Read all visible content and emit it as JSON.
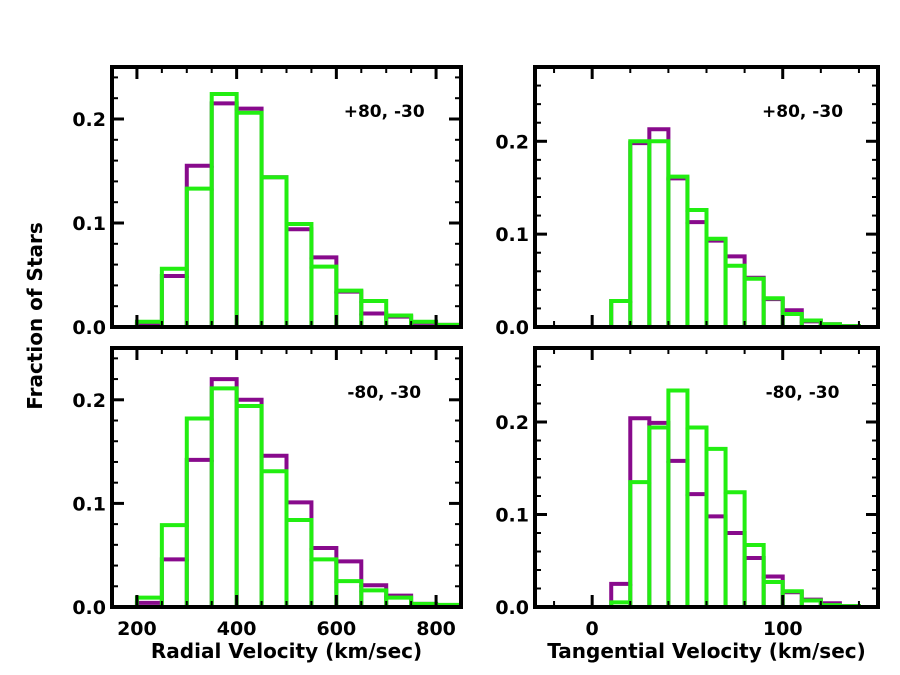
{
  "colors": {
    "series_a": "#880a8c",
    "series_b": "#22ee11",
    "frame": "#000000"
  },
  "shared_labels": {
    "ylabel": "Fraction of Stars"
  },
  "chart_data": [
    {
      "id": "radial_top",
      "type": "histogram",
      "annotation": "+80, -30",
      "xlim": [
        150,
        850
      ],
      "ylim": [
        0,
        0.25
      ],
      "xticks": [
        200,
        400,
        600,
        800
      ],
      "yticks": [
        0.0,
        0.1,
        0.2
      ],
      "ytick_labels": [
        "0.0",
        "0.1",
        "0.2"
      ],
      "bin_edges": [
        150,
        200,
        250,
        300,
        350,
        400,
        450,
        500,
        550,
        600,
        650,
        700,
        750,
        800,
        850
      ],
      "series": [
        {
          "name": "purple",
          "values": [
            0.0,
            0.003,
            0.049,
            0.155,
            0.215,
            0.21,
            0.144,
            0.094,
            0.067,
            0.034,
            0.013,
            0.01,
            0.004,
            0.002
          ]
        },
        {
          "name": "green",
          "values": [
            0.0,
            0.005,
            0.056,
            0.133,
            0.224,
            0.206,
            0.144,
            0.099,
            0.058,
            0.035,
            0.025,
            0.011,
            0.005,
            0.002
          ]
        }
      ]
    },
    {
      "id": "tangential_top",
      "type": "histogram",
      "annotation": "+80, -30",
      "xlim": [
        -30,
        150
      ],
      "ylim": [
        0,
        0.28
      ],
      "xticks": [
        0,
        100
      ],
      "yticks": [
        0.0,
        0.1,
        0.2
      ],
      "ytick_labels": [
        "0.0",
        "0.1",
        "0.2"
      ],
      "bin_edges": [
        10,
        20,
        30,
        40,
        50,
        60,
        70,
        80,
        90,
        100,
        110,
        120,
        130,
        140
      ],
      "series": [
        {
          "name": "purple",
          "values": [
            0.028,
            0.198,
            0.213,
            0.16,
            0.113,
            0.093,
            0.076,
            0.053,
            0.03,
            0.018,
            0.006,
            0.003,
            0.001
          ]
        },
        {
          "name": "green",
          "values": [
            0.028,
            0.2,
            0.2,
            0.162,
            0.126,
            0.095,
            0.066,
            0.052,
            0.031,
            0.014,
            0.007,
            0.003,
            0.001
          ]
        }
      ]
    },
    {
      "id": "radial_bottom",
      "type": "histogram",
      "annotation": "-80, -30",
      "xlim": [
        150,
        850
      ],
      "ylim": [
        0,
        0.25
      ],
      "xticks": [
        200,
        400,
        600,
        800
      ],
      "xtick_labels": [
        "200",
        "400",
        "600",
        "800"
      ],
      "yticks": [
        0.0,
        0.1,
        0.2
      ],
      "ytick_labels": [
        "0.0",
        "0.1",
        "0.2"
      ],
      "xlabel": "Radial Velocity (km/sec)",
      "bin_edges": [
        150,
        200,
        250,
        300,
        350,
        400,
        450,
        500,
        550,
        600,
        650,
        700,
        750,
        800,
        850
      ],
      "series": [
        {
          "name": "purple",
          "values": [
            0.0,
            0.004,
            0.046,
            0.142,
            0.22,
            0.2,
            0.146,
            0.101,
            0.057,
            0.044,
            0.021,
            0.011,
            0.003,
            0.001
          ]
        },
        {
          "name": "green",
          "values": [
            0.0,
            0.009,
            0.079,
            0.182,
            0.211,
            0.194,
            0.131,
            0.084,
            0.046,
            0.025,
            0.016,
            0.009,
            0.003,
            0.002
          ]
        }
      ]
    },
    {
      "id": "tangential_bottom",
      "type": "histogram",
      "annotation": "-80, -30",
      "xlim": [
        -30,
        150
      ],
      "ylim": [
        0,
        0.28
      ],
      "xticks": [
        0,
        100
      ],
      "xtick_labels": [
        "0",
        "100"
      ],
      "yticks": [
        0.0,
        0.1,
        0.2
      ],
      "ytick_labels": [
        "0.0",
        "0.1",
        "0.2"
      ],
      "xlabel": "Tangential Velocity (km/sec)",
      "bin_edges": [
        10,
        20,
        30,
        40,
        50,
        60,
        70,
        80,
        90,
        100,
        110,
        120,
        130,
        140
      ],
      "series": [
        {
          "name": "purple",
          "values": [
            0.025,
            0.204,
            0.199,
            0.158,
            0.122,
            0.098,
            0.08,
            0.053,
            0.033,
            0.016,
            0.008,
            0.004,
            0.001
          ]
        },
        {
          "name": "green",
          "values": [
            0.005,
            0.135,
            0.194,
            0.234,
            0.194,
            0.171,
            0.124,
            0.067,
            0.027,
            0.017,
            0.007,
            0.002,
            0.001
          ]
        }
      ]
    }
  ]
}
